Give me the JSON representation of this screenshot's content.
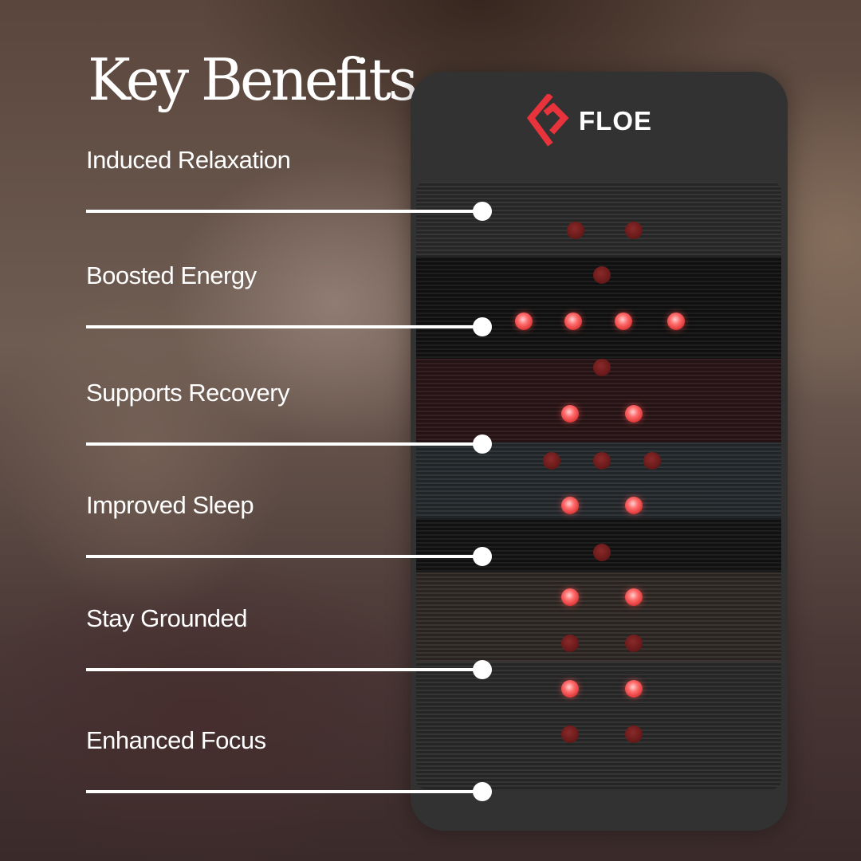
{
  "title": "Key Benefits",
  "brand": {
    "name": "FLOE",
    "logo_icon": "floe-logo-icon",
    "accent": "#e8323c"
  },
  "benefits": [
    {
      "label": "Induced Relaxation"
    },
    {
      "label": "Boosted Energy"
    },
    {
      "label": "Supports Recovery"
    },
    {
      "label": "Improved Sleep"
    },
    {
      "label": "Stay Grounded"
    },
    {
      "label": "Enhanced Focus"
    }
  ],
  "colors": {
    "led_on": "#ff5a5a",
    "led_off": "#6a1a1a",
    "device": "#323232"
  }
}
